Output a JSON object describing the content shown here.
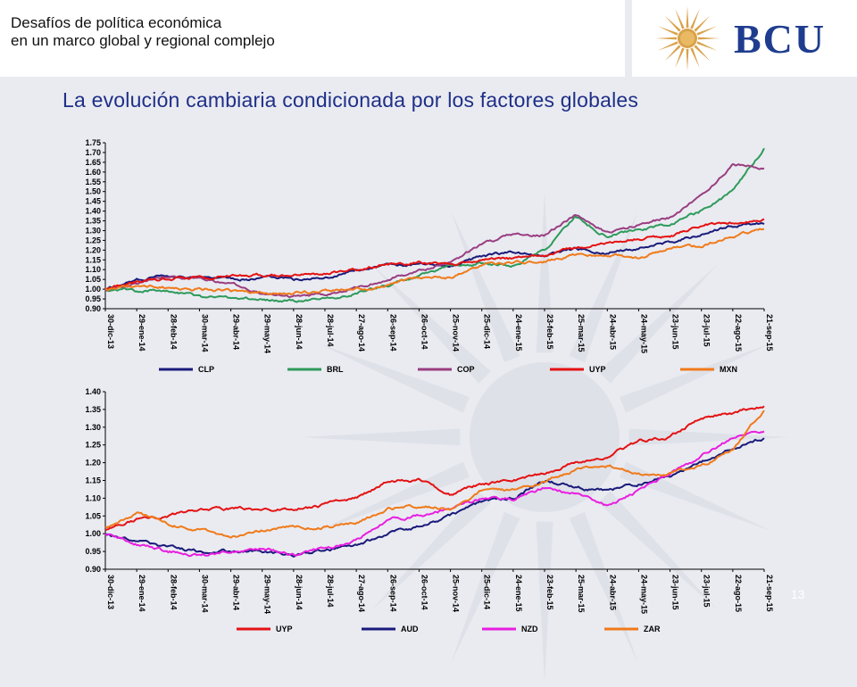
{
  "header": {
    "subtitle_line1": "Desafíos de política económica",
    "subtitle_line2": "en un marco global y regional complejo",
    "logo_text": "BCU"
  },
  "main_title": "La evolución cambiaria condicionada por los factores globales",
  "page_number": "13",
  "colors": {
    "title": "#1f2f87",
    "CLP": "#1a1a7a",
    "BRL": "#2e9a5a",
    "COP": "#9a3d80",
    "UYP": "#e41212",
    "MXN": "#f07a1a",
    "AUD": "#1a1a7a",
    "NZD": "#e81ee0",
    "ZAR": "#f07a1a"
  },
  "chart_data": [
    {
      "type": "line",
      "title": "",
      "xlabel": "",
      "ylabel": "",
      "ylim": [
        0.9,
        1.75
      ],
      "yticks": [
        "0.90",
        "0.95",
        "1.00",
        "1.05",
        "1.10",
        "1.15",
        "1.20",
        "1.25",
        "1.30",
        "1.35",
        "1.40",
        "1.45",
        "1.50",
        "1.55",
        "1.60",
        "1.65",
        "1.70",
        "1.75"
      ],
      "categories": [
        "30-dic-13",
        "29-ene-14",
        "28-feb-14",
        "30-mar-14",
        "29-abr-14",
        "29-may-14",
        "28-jun-14",
        "28-jul-14",
        "27-ago-14",
        "26-sep-14",
        "26-oct-14",
        "25-nov-14",
        "25-dic-14",
        "24-ene-15",
        "23-feb-15",
        "25-mar-15",
        "24-abr-15",
        "24-may-15",
        "23-jun-15",
        "23-jul-15",
        "22-ago-15",
        "21-sep-15"
      ],
      "legend": [
        "CLP",
        "BRL",
        "COP",
        "UYP",
        "MXN"
      ],
      "legend_position": "bottom",
      "series": [
        {
          "name": "CLP",
          "values": [
            1.0,
            1.05,
            1.07,
            1.06,
            1.05,
            1.06,
            1.05,
            1.06,
            1.1,
            1.12,
            1.13,
            1.12,
            1.17,
            1.19,
            1.17,
            1.21,
            1.19,
            1.21,
            1.24,
            1.28,
            1.32,
            1.34
          ]
        },
        {
          "name": "BRL",
          "values": [
            1.0,
            0.99,
            0.99,
            0.96,
            0.95,
            0.95,
            0.94,
            0.95,
            0.98,
            1.02,
            1.07,
            1.12,
            1.13,
            1.12,
            1.2,
            1.37,
            1.27,
            1.31,
            1.33,
            1.4,
            1.5,
            1.72
          ]
        },
        {
          "name": "COP",
          "values": [
            1.0,
            1.03,
            1.07,
            1.05,
            1.03,
            0.98,
            0.96,
            0.97,
            1.01,
            1.05,
            1.1,
            1.14,
            1.23,
            1.28,
            1.28,
            1.38,
            1.29,
            1.33,
            1.37,
            1.48,
            1.64,
            1.62
          ]
        },
        {
          "name": "UYP",
          "values": [
            1.0,
            1.04,
            1.05,
            1.06,
            1.07,
            1.07,
            1.07,
            1.08,
            1.1,
            1.13,
            1.14,
            1.12,
            1.15,
            1.16,
            1.18,
            1.21,
            1.24,
            1.26,
            1.27,
            1.33,
            1.34,
            1.36
          ]
        },
        {
          "name": "MXN",
          "values": [
            1.0,
            1.02,
            1.01,
            1.0,
            0.99,
            0.98,
            0.98,
            0.99,
            1.0,
            1.02,
            1.06,
            1.06,
            1.12,
            1.14,
            1.14,
            1.18,
            1.17,
            1.16,
            1.21,
            1.22,
            1.27,
            1.31
          ]
        }
      ]
    },
    {
      "type": "line",
      "title": "",
      "xlabel": "",
      "ylabel": "",
      "ylim": [
        0.9,
        1.4
      ],
      "yticks": [
        "0.90",
        "0.95",
        "1.00",
        "1.05",
        "1.10",
        "1.15",
        "1.20",
        "1.25",
        "1.30",
        "1.35",
        "1.40"
      ],
      "categories": [
        "30-dic-13",
        "29-ene-14",
        "28-feb-14",
        "30-mar-14",
        "29-abr-14",
        "29-may-14",
        "28-jun-14",
        "28-jul-14",
        "27-ago-14",
        "26-sep-14",
        "26-oct-14",
        "25-nov-14",
        "25-dic-14",
        "24-ene-15",
        "23-feb-15",
        "25-mar-15",
        "24-abr-15",
        "24-may-15",
        "23-jun-15",
        "23-jul-15",
        "22-ago-15",
        "21-sep-15"
      ],
      "legend": [
        "UYP",
        "AUD",
        "NZD",
        "ZAR"
      ],
      "legend_position": "bottom",
      "series": [
        {
          "name": "UYP",
          "values": [
            1.01,
            1.04,
            1.05,
            1.07,
            1.07,
            1.07,
            1.07,
            1.08,
            1.1,
            1.15,
            1.15,
            1.11,
            1.14,
            1.15,
            1.17,
            1.2,
            1.22,
            1.26,
            1.27,
            1.33,
            1.34,
            1.36
          ]
        },
        {
          "name": "AUD",
          "values": [
            1.0,
            0.98,
            0.96,
            0.95,
            0.95,
            0.95,
            0.94,
            0.95,
            0.97,
            1.0,
            1.02,
            1.05,
            1.09,
            1.1,
            1.15,
            1.13,
            1.12,
            1.14,
            1.16,
            1.2,
            1.24,
            1.27
          ]
        },
        {
          "name": "NZD",
          "values": [
            1.0,
            0.97,
            0.95,
            0.94,
            0.95,
            0.96,
            0.94,
            0.96,
            0.98,
            1.04,
            1.05,
            1.07,
            1.1,
            1.1,
            1.13,
            1.11,
            1.08,
            1.12,
            1.17,
            1.22,
            1.27,
            1.29
          ]
        },
        {
          "name": "ZAR",
          "values": [
            1.02,
            1.06,
            1.03,
            1.01,
            0.99,
            1.01,
            1.02,
            1.02,
            1.03,
            1.07,
            1.08,
            1.07,
            1.12,
            1.12,
            1.15,
            1.18,
            1.19,
            1.17,
            1.17,
            1.19,
            1.24,
            1.35
          ]
        }
      ]
    }
  ]
}
